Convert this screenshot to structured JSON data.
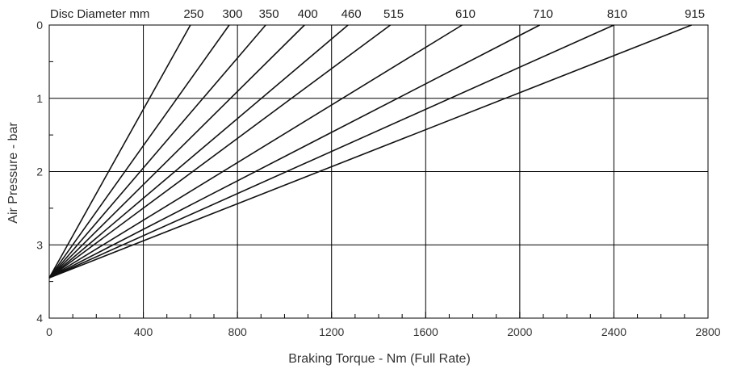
{
  "chart_data": {
    "type": "line",
    "title": "",
    "top_label": "Disc Diameter mm",
    "xlabel": "Braking Torque - Nm (Full Rate)",
    "ylabel": "Air Pressure - bar",
    "xlim": [
      0,
      2800
    ],
    "ylim": [
      0,
      4
    ],
    "y_inverted": true,
    "x_ticks": [
      0,
      400,
      800,
      1200,
      1600,
      2000,
      2400,
      2800
    ],
    "x_tick_labels": [
      "0",
      "400",
      "800",
      "1200",
      "1600",
      "2000",
      "2400",
      "2800"
    ],
    "y_ticks": [
      0,
      1,
      2,
      3,
      4
    ],
    "y_tick_labels": [
      "0",
      "1",
      "2",
      "3",
      "4"
    ],
    "grid": true,
    "series": [
      {
        "name": "250",
        "x": [
          0,
          600
        ],
        "y": [
          3.45,
          0
        ]
      },
      {
        "name": "300",
        "x": [
          0,
          765
        ],
        "y": [
          3.45,
          0
        ]
      },
      {
        "name": "350",
        "x": [
          0,
          920
        ],
        "y": [
          3.45,
          0
        ]
      },
      {
        "name": "400",
        "x": [
          0,
          1085
        ],
        "y": [
          3.45,
          0
        ]
      },
      {
        "name": "460",
        "x": [
          0,
          1270
        ],
        "y": [
          3.45,
          0
        ]
      },
      {
        "name": "515",
        "x": [
          0,
          1450
        ],
        "y": [
          3.45,
          0
        ]
      },
      {
        "name": "610",
        "x": [
          0,
          1755
        ],
        "y": [
          3.45,
          0
        ]
      },
      {
        "name": "710",
        "x": [
          0,
          2085
        ],
        "y": [
          3.45,
          0
        ]
      },
      {
        "name": "810",
        "x": [
          0,
          2400
        ],
        "y": [
          3.45,
          0
        ]
      },
      {
        "name": "915",
        "x": [
          0,
          2730
        ],
        "y": [
          3.45,
          0
        ]
      }
    ],
    "line_color": "#111111",
    "grid_color": "#000000"
  }
}
